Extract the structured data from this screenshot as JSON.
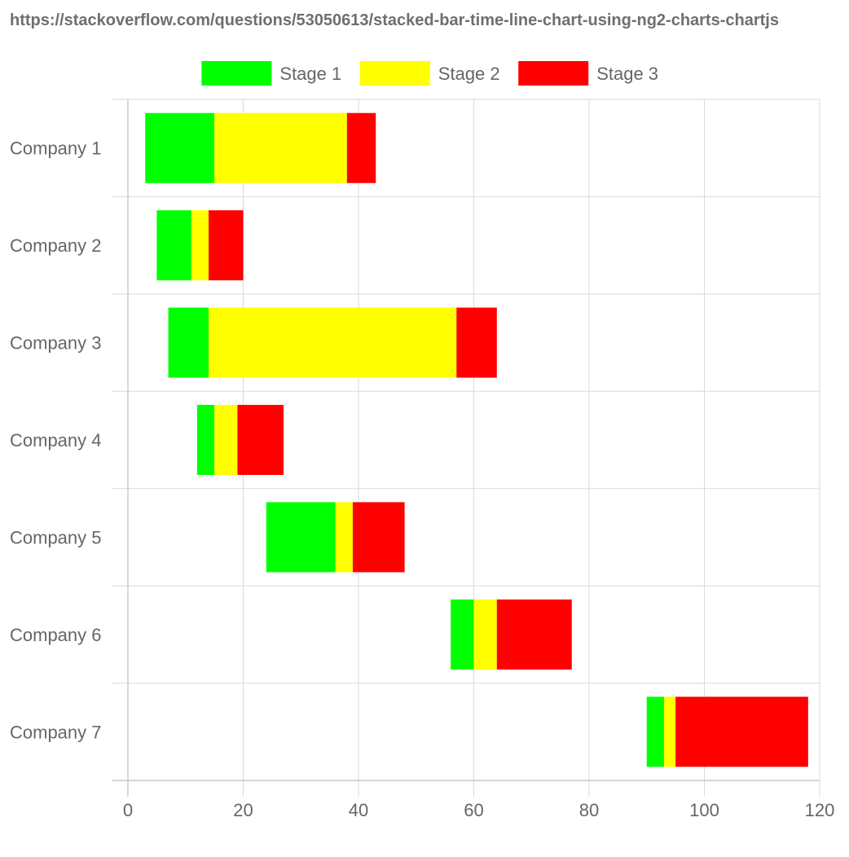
{
  "page": {
    "url_caption": "https://stackoverflow.com/questions/53050613/stacked-bar-time-line-chart-using-ng2-charts-chartjs"
  },
  "chart_data": {
    "type": "bar",
    "orientation": "horizontal",
    "stacked": true,
    "title": "",
    "xlabel": "",
    "ylabel": "",
    "xlim": [
      0,
      120
    ],
    "x_ticks": [
      0,
      20,
      40,
      60,
      80,
      100,
      120
    ],
    "grid": true,
    "legend_position": "top",
    "categories": [
      "Company 1",
      "Company 2",
      "Company 3",
      "Company 4",
      "Company 5",
      "Company 6",
      "Company 7"
    ],
    "offset": [
      3,
      5,
      7,
      12,
      24,
      56,
      90
    ],
    "series": [
      {
        "name": "Stage 1",
        "color": "#00ff00",
        "values": [
          12,
          6,
          7,
          3,
          12,
          4,
          3
        ]
      },
      {
        "name": "Stage 2",
        "color": "#ffff00",
        "values": [
          23,
          3,
          43,
          4,
          3,
          4,
          2
        ]
      },
      {
        "name": "Stage 3",
        "color": "#ff0000",
        "values": [
          5,
          6,
          7,
          8,
          9,
          13,
          23
        ]
      }
    ]
  }
}
